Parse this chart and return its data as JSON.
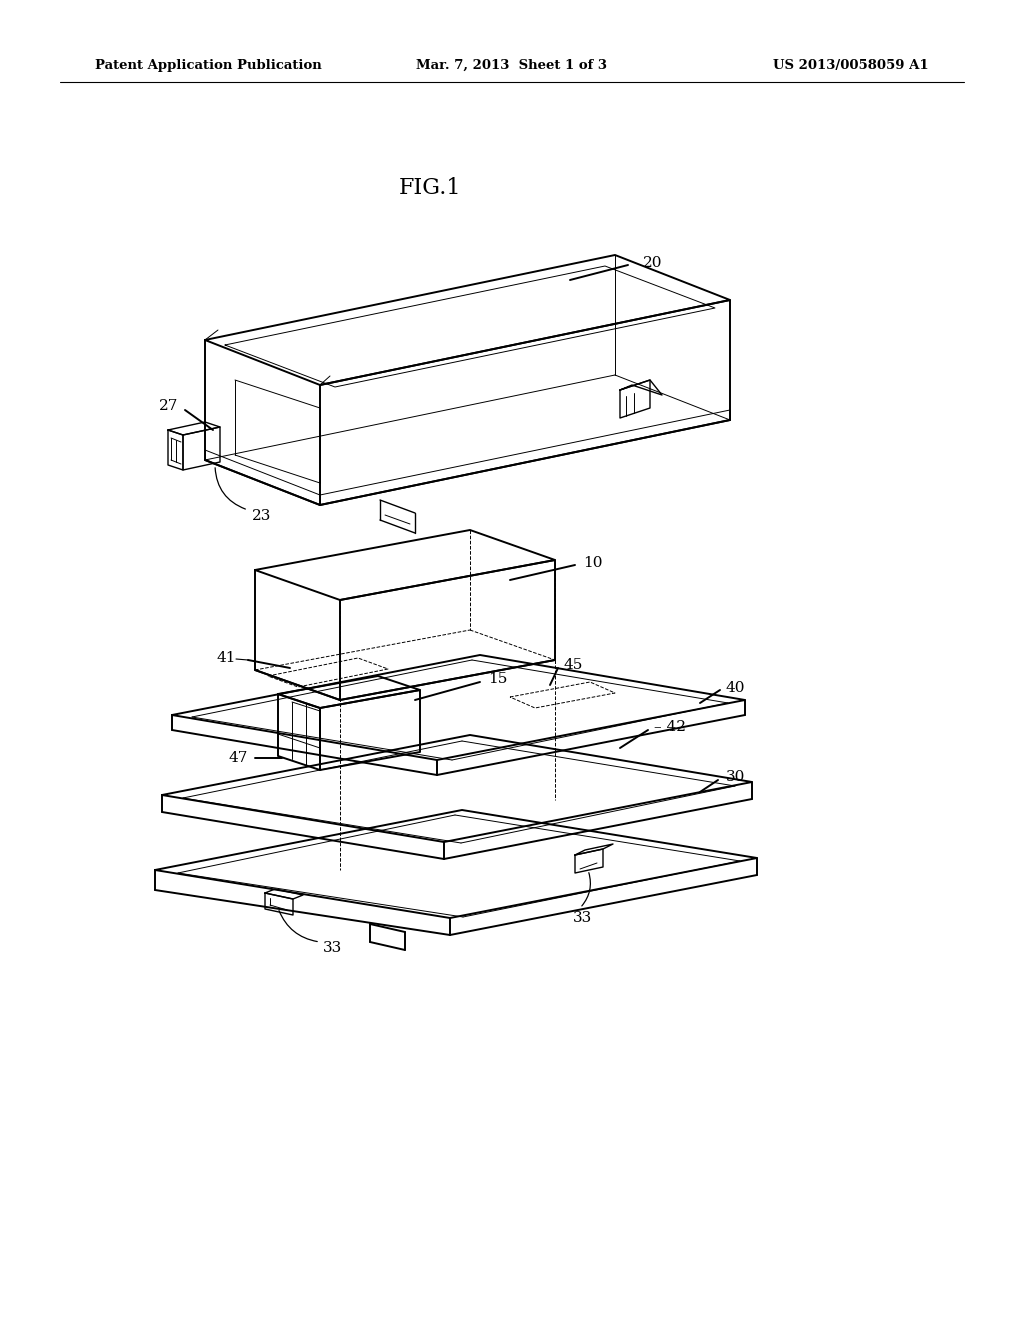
{
  "bg": "#ffffff",
  "lc": "#000000",
  "header_left": "Patent Application Publication",
  "header_center": "Mar. 7, 2013  Sheet 1 of 3",
  "header_right": "US 2013/0058059 A1",
  "fig_label": "FIG.1",
  "lw_main": 1.4,
  "lw_thin": 0.7,
  "lw_med": 1.0,
  "fs_label": 11,
  "fs_header": 9.5
}
